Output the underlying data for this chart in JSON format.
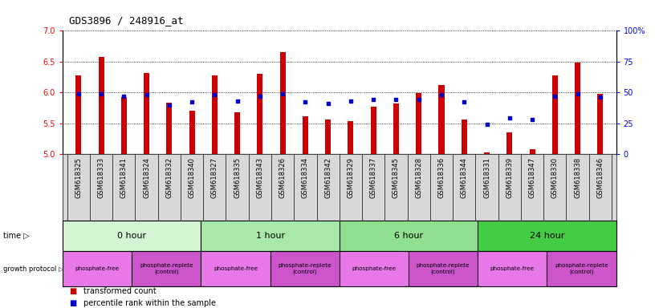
{
  "title": "GDS3896 / 248916_at",
  "samples": [
    "GSM618325",
    "GSM618333",
    "GSM618341",
    "GSM618324",
    "GSM618332",
    "GSM618340",
    "GSM618327",
    "GSM618335",
    "GSM618343",
    "GSM618326",
    "GSM618334",
    "GSM618342",
    "GSM618329",
    "GSM618337",
    "GSM618345",
    "GSM618328",
    "GSM618336",
    "GSM618344",
    "GSM618331",
    "GSM618339",
    "GSM618347",
    "GSM618330",
    "GSM618338",
    "GSM618346"
  ],
  "bar_values": [
    6.28,
    6.58,
    5.92,
    6.32,
    5.83,
    5.7,
    6.28,
    5.68,
    6.3,
    6.65,
    5.61,
    5.56,
    5.53,
    5.77,
    5.82,
    5.99,
    6.12,
    5.56,
    5.02,
    5.35,
    5.08,
    6.27,
    6.48,
    5.98
  ],
  "percentile_values": [
    49,
    49,
    47,
    48,
    40,
    42,
    48,
    43,
    47,
    49,
    42,
    41,
    43,
    44,
    44,
    44,
    48,
    42,
    24,
    29,
    28,
    47,
    49,
    46
  ],
  "time_groups": [
    {
      "label": "0 hour",
      "start": 0,
      "end": 6,
      "color": "#d4f5d4"
    },
    {
      "label": "1 hour",
      "start": 6,
      "end": 12,
      "color": "#a8e8a8"
    },
    {
      "label": "6 hour",
      "start": 12,
      "end": 18,
      "color": "#90e090"
    },
    {
      "label": "24 hour",
      "start": 18,
      "end": 24,
      "color": "#44cc44"
    }
  ],
  "protocol_groups": [
    {
      "label": "phosphate-free",
      "start": 0,
      "end": 3,
      "color": "#e878e8"
    },
    {
      "label": "phosphate-replete\n(control)",
      "start": 3,
      "end": 6,
      "color": "#cc55cc"
    },
    {
      "label": "phosphate-free",
      "start": 6,
      "end": 9,
      "color": "#e878e8"
    },
    {
      "label": "phosphate-replete\n(control)",
      "start": 9,
      "end": 12,
      "color": "#cc55cc"
    },
    {
      "label": "phosphate-free",
      "start": 12,
      "end": 15,
      "color": "#e878e8"
    },
    {
      "label": "phosphate-replete\n(control)",
      "start": 15,
      "end": 18,
      "color": "#cc55cc"
    },
    {
      "label": "phosphate-free",
      "start": 18,
      "end": 21,
      "color": "#e878e8"
    },
    {
      "label": "phosphate-replete\n(control)",
      "start": 21,
      "end": 24,
      "color": "#cc55cc"
    }
  ],
  "ylim": [
    5.0,
    7.0
  ],
  "yticks": [
    5.0,
    5.5,
    6.0,
    6.5,
    7.0
  ],
  "y2ticks": [
    0,
    25,
    50,
    75,
    100
  ],
  "bar_color": "#cc0000",
  "dot_color": "#0000cc",
  "bar_bottom": 5.0,
  "chart_bg": "#ffffff",
  "label_bg": "#d8d8d8"
}
